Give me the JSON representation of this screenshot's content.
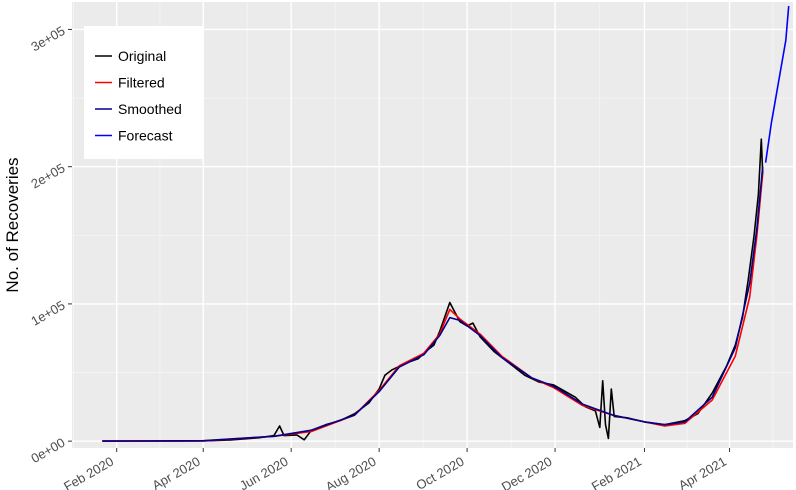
{
  "chart_data": {
    "type": "line",
    "ylabel": "No. of Recoveries",
    "xlabel": "",
    "grid": true,
    "legend_position": "top-left",
    "xlim": [
      "2020-01-01",
      "2021-05-15"
    ],
    "ylim": [
      -5000,
      320000
    ],
    "x_ticks": [
      {
        "date": "2020-02-01",
        "label": "Feb 2020"
      },
      {
        "date": "2020-04-01",
        "label": "Apr 2020"
      },
      {
        "date": "2020-06-01",
        "label": "Jun 2020"
      },
      {
        "date": "2020-08-01",
        "label": "Aug 2020"
      },
      {
        "date": "2020-10-01",
        "label": "Oct 2020"
      },
      {
        "date": "2020-12-01",
        "label": "Dec 2020"
      },
      {
        "date": "2021-02-01",
        "label": "Feb 2021"
      },
      {
        "date": "2021-04-01",
        "label": "Apr 2021"
      }
    ],
    "y_ticks": [
      {
        "value": 0,
        "label": "0e+00"
      },
      {
        "value": 100000,
        "label": "1e+05"
      },
      {
        "value": 200000,
        "label": "2e+05"
      },
      {
        "value": 300000,
        "label": "3e+05"
      }
    ],
    "series": [
      {
        "name": "Original",
        "color": "#000000",
        "points": [
          [
            "2020-01-22",
            0
          ],
          [
            "2020-02-15",
            0
          ],
          [
            "2020-03-15",
            0
          ],
          [
            "2020-04-01",
            200
          ],
          [
            "2020-04-20",
            800
          ],
          [
            "2020-05-10",
            2500
          ],
          [
            "2020-05-20",
            4000
          ],
          [
            "2020-05-24",
            11000
          ],
          [
            "2020-05-27",
            4000
          ],
          [
            "2020-06-05",
            4500
          ],
          [
            "2020-06-10",
            1000
          ],
          [
            "2020-06-15",
            8000
          ],
          [
            "2020-06-25",
            12000
          ],
          [
            "2020-07-05",
            15000
          ],
          [
            "2020-07-15",
            20000
          ],
          [
            "2020-07-25",
            28000
          ],
          [
            "2020-08-01",
            38000
          ],
          [
            "2020-08-05",
            48000
          ],
          [
            "2020-08-10",
            52000
          ],
          [
            "2020-08-20",
            57000
          ],
          [
            "2020-08-28",
            60000
          ],
          [
            "2020-09-03",
            66000
          ],
          [
            "2020-09-08",
            70000
          ],
          [
            "2020-09-12",
            80000
          ],
          [
            "2020-09-16",
            92000
          ],
          [
            "2020-09-19",
            101000
          ],
          [
            "2020-09-22",
            95000
          ],
          [
            "2020-09-26",
            87000
          ],
          [
            "2020-10-01",
            84000
          ],
          [
            "2020-10-05",
            86000
          ],
          [
            "2020-10-10",
            76000
          ],
          [
            "2020-10-20",
            65000
          ],
          [
            "2020-10-30",
            57000
          ],
          [
            "2020-11-10",
            48000
          ],
          [
            "2020-11-20",
            43000
          ],
          [
            "2020-11-30",
            41000
          ],
          [
            "2020-12-05",
            38000
          ],
          [
            "2020-12-15",
            32000
          ],
          [
            "2020-12-22",
            25000
          ],
          [
            "2020-12-29",
            22000
          ],
          [
            "2021-01-01",
            10000
          ],
          [
            "2021-01-03",
            44000
          ],
          [
            "2021-01-05",
            12000
          ],
          [
            "2021-01-07",
            2000
          ],
          [
            "2021-01-09",
            38000
          ],
          [
            "2021-01-11",
            18000
          ],
          [
            "2021-01-20",
            17000
          ],
          [
            "2021-02-01",
            14000
          ],
          [
            "2021-02-15",
            12000
          ],
          [
            "2021-03-01",
            15000
          ],
          [
            "2021-03-10",
            20000
          ],
          [
            "2021-03-20",
            35000
          ],
          [
            "2021-03-30",
            55000
          ],
          [
            "2021-04-05",
            70000
          ],
          [
            "2021-04-10",
            90000
          ],
          [
            "2021-04-14",
            118000
          ],
          [
            "2021-04-18",
            150000
          ],
          [
            "2021-04-21",
            180000
          ],
          [
            "2021-04-23",
            220000
          ],
          [
            "2021-04-24",
            195000
          ]
        ]
      },
      {
        "name": "Filtered",
        "color": "#ff0000",
        "points": [
          [
            "2020-01-22",
            0
          ],
          [
            "2020-04-01",
            200
          ],
          [
            "2020-05-20",
            3500
          ],
          [
            "2020-06-15",
            7000
          ],
          [
            "2020-07-15",
            19000
          ],
          [
            "2020-08-01",
            37000
          ],
          [
            "2020-08-15",
            55000
          ],
          [
            "2020-09-01",
            64000
          ],
          [
            "2020-09-12",
            78000
          ],
          [
            "2020-09-19",
            96000
          ],
          [
            "2020-09-26",
            89000
          ],
          [
            "2020-10-10",
            78000
          ],
          [
            "2020-10-25",
            62000
          ],
          [
            "2020-11-15",
            46000
          ],
          [
            "2020-11-30",
            39000
          ],
          [
            "2020-12-20",
            26000
          ],
          [
            "2021-01-10",
            19000
          ],
          [
            "2021-02-01",
            14000
          ],
          [
            "2021-02-15",
            11000
          ],
          [
            "2021-03-01",
            13000
          ],
          [
            "2021-03-20",
            30000
          ],
          [
            "2021-04-05",
            62000
          ],
          [
            "2021-04-15",
            105000
          ],
          [
            "2021-04-20",
            150000
          ],
          [
            "2021-04-24",
            195000
          ]
        ]
      },
      {
        "name": "Smoothed",
        "color": "#00008b",
        "points": [
          [
            "2020-01-22",
            0
          ],
          [
            "2020-04-01",
            300
          ],
          [
            "2020-05-20",
            3500
          ],
          [
            "2020-06-15",
            8000
          ],
          [
            "2020-07-15",
            19000
          ],
          [
            "2020-08-01",
            36000
          ],
          [
            "2020-08-15",
            54000
          ],
          [
            "2020-09-01",
            63000
          ],
          [
            "2020-09-12",
            77000
          ],
          [
            "2020-09-19",
            90000
          ],
          [
            "2020-09-26",
            88000
          ],
          [
            "2020-10-10",
            77000
          ],
          [
            "2020-10-25",
            61000
          ],
          [
            "2020-11-15",
            46000
          ],
          [
            "2020-11-30",
            40000
          ],
          [
            "2020-12-20",
            27000
          ],
          [
            "2021-01-10",
            19000
          ],
          [
            "2021-02-01",
            14000
          ],
          [
            "2021-02-15",
            12000
          ],
          [
            "2021-03-01",
            14000
          ],
          [
            "2021-03-20",
            32000
          ],
          [
            "2021-04-05",
            68000
          ],
          [
            "2021-04-15",
            115000
          ],
          [
            "2021-04-20",
            155000
          ],
          [
            "2021-04-24",
            200000
          ]
        ]
      },
      {
        "name": "Forecast",
        "color": "#0000ff",
        "points": [
          [
            "2021-04-26",
            203000
          ],
          [
            "2021-04-30",
            232000
          ],
          [
            "2021-05-05",
            262000
          ],
          [
            "2021-05-10",
            292000
          ],
          [
            "2021-05-12",
            317000
          ]
        ]
      }
    ]
  }
}
